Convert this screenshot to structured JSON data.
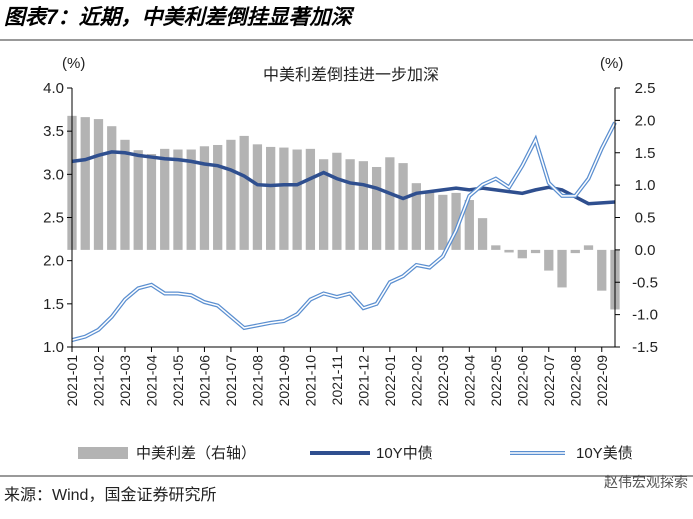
{
  "header": {
    "title": "图表7：近期，中美利差倒挂显著加深"
  },
  "chart_data": {
    "type": "bar-line",
    "title": "中美利差倒挂进一步加深",
    "y_label": "(%)",
    "y2_label": "(%)",
    "categories": [
      "2021-01",
      null,
      "2021-02",
      null,
      "2021-03",
      null,
      "2021-04",
      null,
      "2021-05",
      null,
      "2021-06",
      null,
      "2021-07",
      null,
      "2021-08",
      null,
      "2021-09",
      null,
      "2021-10",
      null,
      "2021-11",
      null,
      "2021-12",
      null,
      "2022-01",
      null,
      "2022-02",
      null,
      "2022-03",
      null,
      "2022-04",
      null,
      "2022-05",
      null,
      "2022-06",
      null,
      "2022-07",
      null,
      "2022-08",
      null,
      "2022-09",
      null
    ],
    "series": [
      {
        "name": "中美利差（右轴）",
        "kind": "bar",
        "axis": "y2",
        "color": "#b3b3b3",
        "values": [
          2.07,
          2.05,
          2.02,
          1.91,
          1.7,
          1.54,
          1.48,
          1.56,
          1.55,
          1.55,
          1.6,
          1.62,
          1.7,
          1.76,
          1.63,
          1.59,
          1.58,
          1.55,
          1.56,
          1.4,
          1.5,
          1.4,
          1.37,
          1.28,
          1.43,
          1.34,
          1.03,
          0.9,
          0.85,
          0.88,
          0.77,
          0.49,
          0.07,
          -0.04,
          -0.13,
          -0.05,
          -0.32,
          -0.58,
          -0.05,
          0.07,
          -0.63,
          -0.92
        ]
      },
      {
        "name": "10Y中债",
        "kind": "line",
        "color": "#2f4f8f",
        "values": [
          3.15,
          3.17,
          3.22,
          3.26,
          3.25,
          3.22,
          3.2,
          3.18,
          3.17,
          3.15,
          3.12,
          3.1,
          3.05,
          2.98,
          2.88,
          2.87,
          2.88,
          2.88,
          2.95,
          3.02,
          2.95,
          2.9,
          2.88,
          2.84,
          2.78,
          2.72,
          2.78,
          2.8,
          2.82,
          2.84,
          2.82,
          2.84,
          2.82,
          2.8,
          2.78,
          2.82,
          2.85,
          2.82,
          2.74,
          2.66,
          2.67,
          2.68
        ]
      },
      {
        "name": "10Y美债",
        "kind": "double-line",
        "color": "#5b8fd0",
        "values": [
          1.08,
          1.12,
          1.2,
          1.35,
          1.55,
          1.68,
          1.72,
          1.62,
          1.62,
          1.6,
          1.52,
          1.48,
          1.35,
          1.22,
          1.25,
          1.28,
          1.3,
          1.38,
          1.55,
          1.62,
          1.58,
          1.62,
          1.45,
          1.5,
          1.75,
          1.82,
          1.95,
          1.92,
          2.05,
          2.35,
          2.75,
          2.88,
          2.95,
          2.85,
          3.1,
          3.4,
          2.9,
          2.75,
          2.75,
          2.95,
          3.3,
          3.6
        ]
      }
    ],
    "ylim": [
      1,
      4
    ],
    "yticks": [
      {
        "value": 1,
        "label": "1.0"
      },
      1.5,
      {
        "value": 2,
        "label": "2.0"
      },
      2.5,
      {
        "value": 3,
        "label": "3.0"
      },
      3.5,
      {
        "value": 4,
        "label": "4.0"
      }
    ],
    "y2lim": [
      -1.5,
      2.5
    ],
    "y2ticks": [
      -1.5,
      {
        "value": -1,
        "label": "-1.0"
      },
      -0.5,
      {
        "value": 0,
        "label": "0.0"
      },
      0.5,
      {
        "value": 1,
        "label": "1.0"
      },
      1.5,
      {
        "value": 2,
        "label": "2.0"
      },
      2.5
    ]
  },
  "source": "来源：Wind，国金证券研究所",
  "watermark": "赵伟宏观探索"
}
